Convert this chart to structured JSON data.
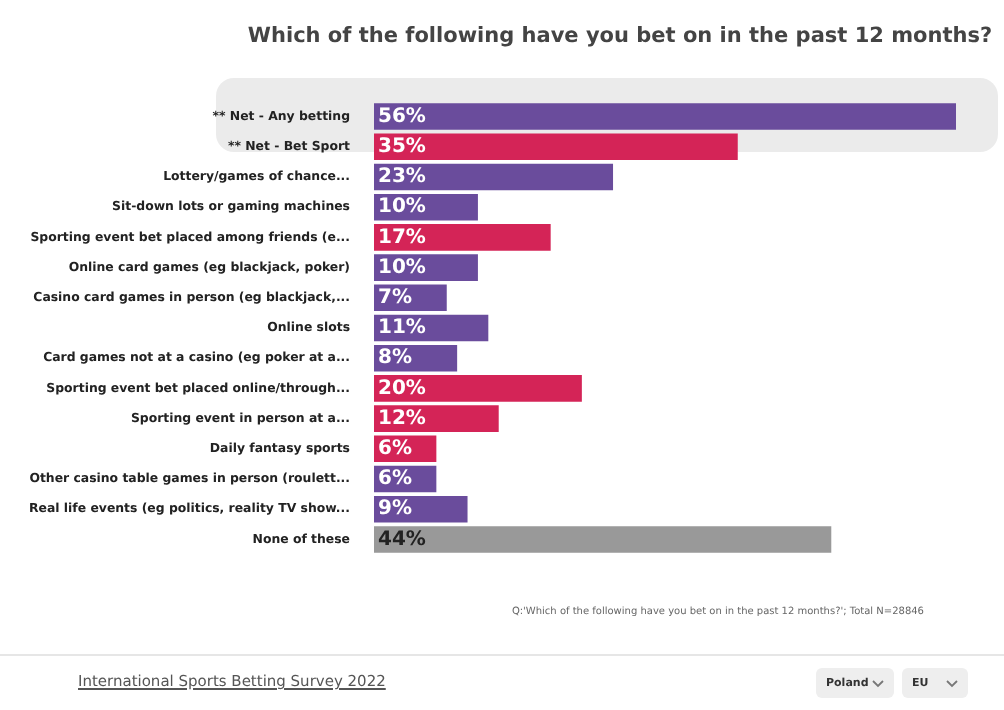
{
  "chart_data": {
    "type": "bar",
    "orientation": "horizontal",
    "title": "Which of the following have you bet on in the past 12 months?",
    "categories": [
      "** Net - Any betting",
      "** Net - Bet Sport",
      "Lottery/games of chance...",
      "Sit-down lots or gaming machines",
      "Sporting event bet placed among friends (e...",
      "Online card games (eg blackjack, poker)",
      "Casino card games in person (eg blackjack,...",
      "Online slots",
      "Card games not at a casino (eg poker at a...",
      "Sporting event bet placed online/through...",
      "Sporting event in person at a...",
      "Daily fantasy sports",
      "Other casino table games in person (roulett...",
      "Real life events (eg politics, reality TV show...",
      "None of these"
    ],
    "values": [
      56,
      35,
      23,
      10,
      17,
      10,
      7,
      11,
      8,
      20,
      12,
      6,
      6,
      9,
      44
    ],
    "value_labels": [
      "56%",
      "35%",
      "23%",
      "10%",
      "17%",
      "10%",
      "7%",
      "11%",
      "8%",
      "20%",
      "12%",
      "6%",
      "6%",
      "9%",
      "44%"
    ],
    "colors": [
      "#6a4c9c",
      "#d42457",
      "#6a4c9c",
      "#6a4c9c",
      "#d42457",
      "#6a4c9c",
      "#6a4c9c",
      "#6a4c9c",
      "#6a4c9c",
      "#d42457",
      "#d42457",
      "#d42457",
      "#6a4c9c",
      "#6a4c9c",
      "#999999"
    ],
    "annotations": [
      "Q:'Which of the following have you bet on in the past 12 months?'; Total N=28846",
      "International Sports Betting Survey 2022",
      "Poland",
      "EU"
    ]
  }
}
